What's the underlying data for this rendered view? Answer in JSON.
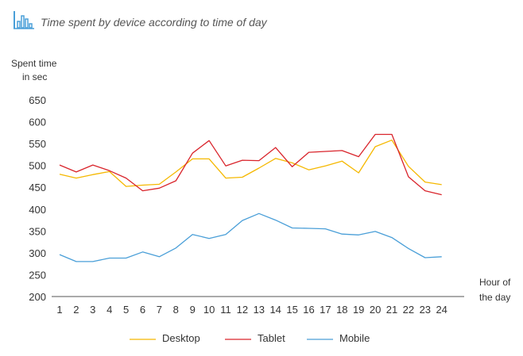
{
  "chart_data": {
    "type": "line",
    "title": "Time spent by device according to time of day",
    "ylabel": [
      "Spent time",
      "in sec"
    ],
    "xlabel": [
      "Hour of",
      "the day"
    ],
    "ylim": [
      200,
      650
    ],
    "yticks": [
      200,
      250,
      300,
      350,
      400,
      450,
      500,
      550,
      600,
      650
    ],
    "x": [
      1,
      2,
      3,
      4,
      5,
      6,
      7,
      8,
      9,
      10,
      11,
      12,
      13,
      14,
      15,
      16,
      17,
      18,
      19,
      20,
      21,
      22,
      23,
      24
    ],
    "grid": false,
    "legend_position": "bottom",
    "series": [
      {
        "name": "Desktop",
        "color": "#f5b800",
        "values": [
          480,
          471,
          479,
          486,
          452,
          455,
          457,
          485,
          515,
          515,
          471,
          473,
          494,
          516,
          506,
          490,
          499,
          510,
          483,
          543,
          558,
          498,
          462,
          456
        ]
      },
      {
        "name": "Tablet",
        "color": "#d9242b",
        "values": [
          501,
          485,
          501,
          488,
          471,
          442,
          448,
          465,
          528,
          557,
          499,
          512,
          511,
          541,
          497,
          530,
          532,
          534,
          520,
          571,
          571,
          474,
          442,
          433
        ]
      },
      {
        "name": "Mobile",
        "color": "#4a9fd8",
        "values": [
          296,
          280,
          280,
          288,
          288,
          302,
          291,
          311,
          342,
          333,
          342,
          374,
          390,
          375,
          357,
          356,
          355,
          343,
          341,
          349,
          335,
          310,
          289,
          291
        ]
      }
    ]
  }
}
